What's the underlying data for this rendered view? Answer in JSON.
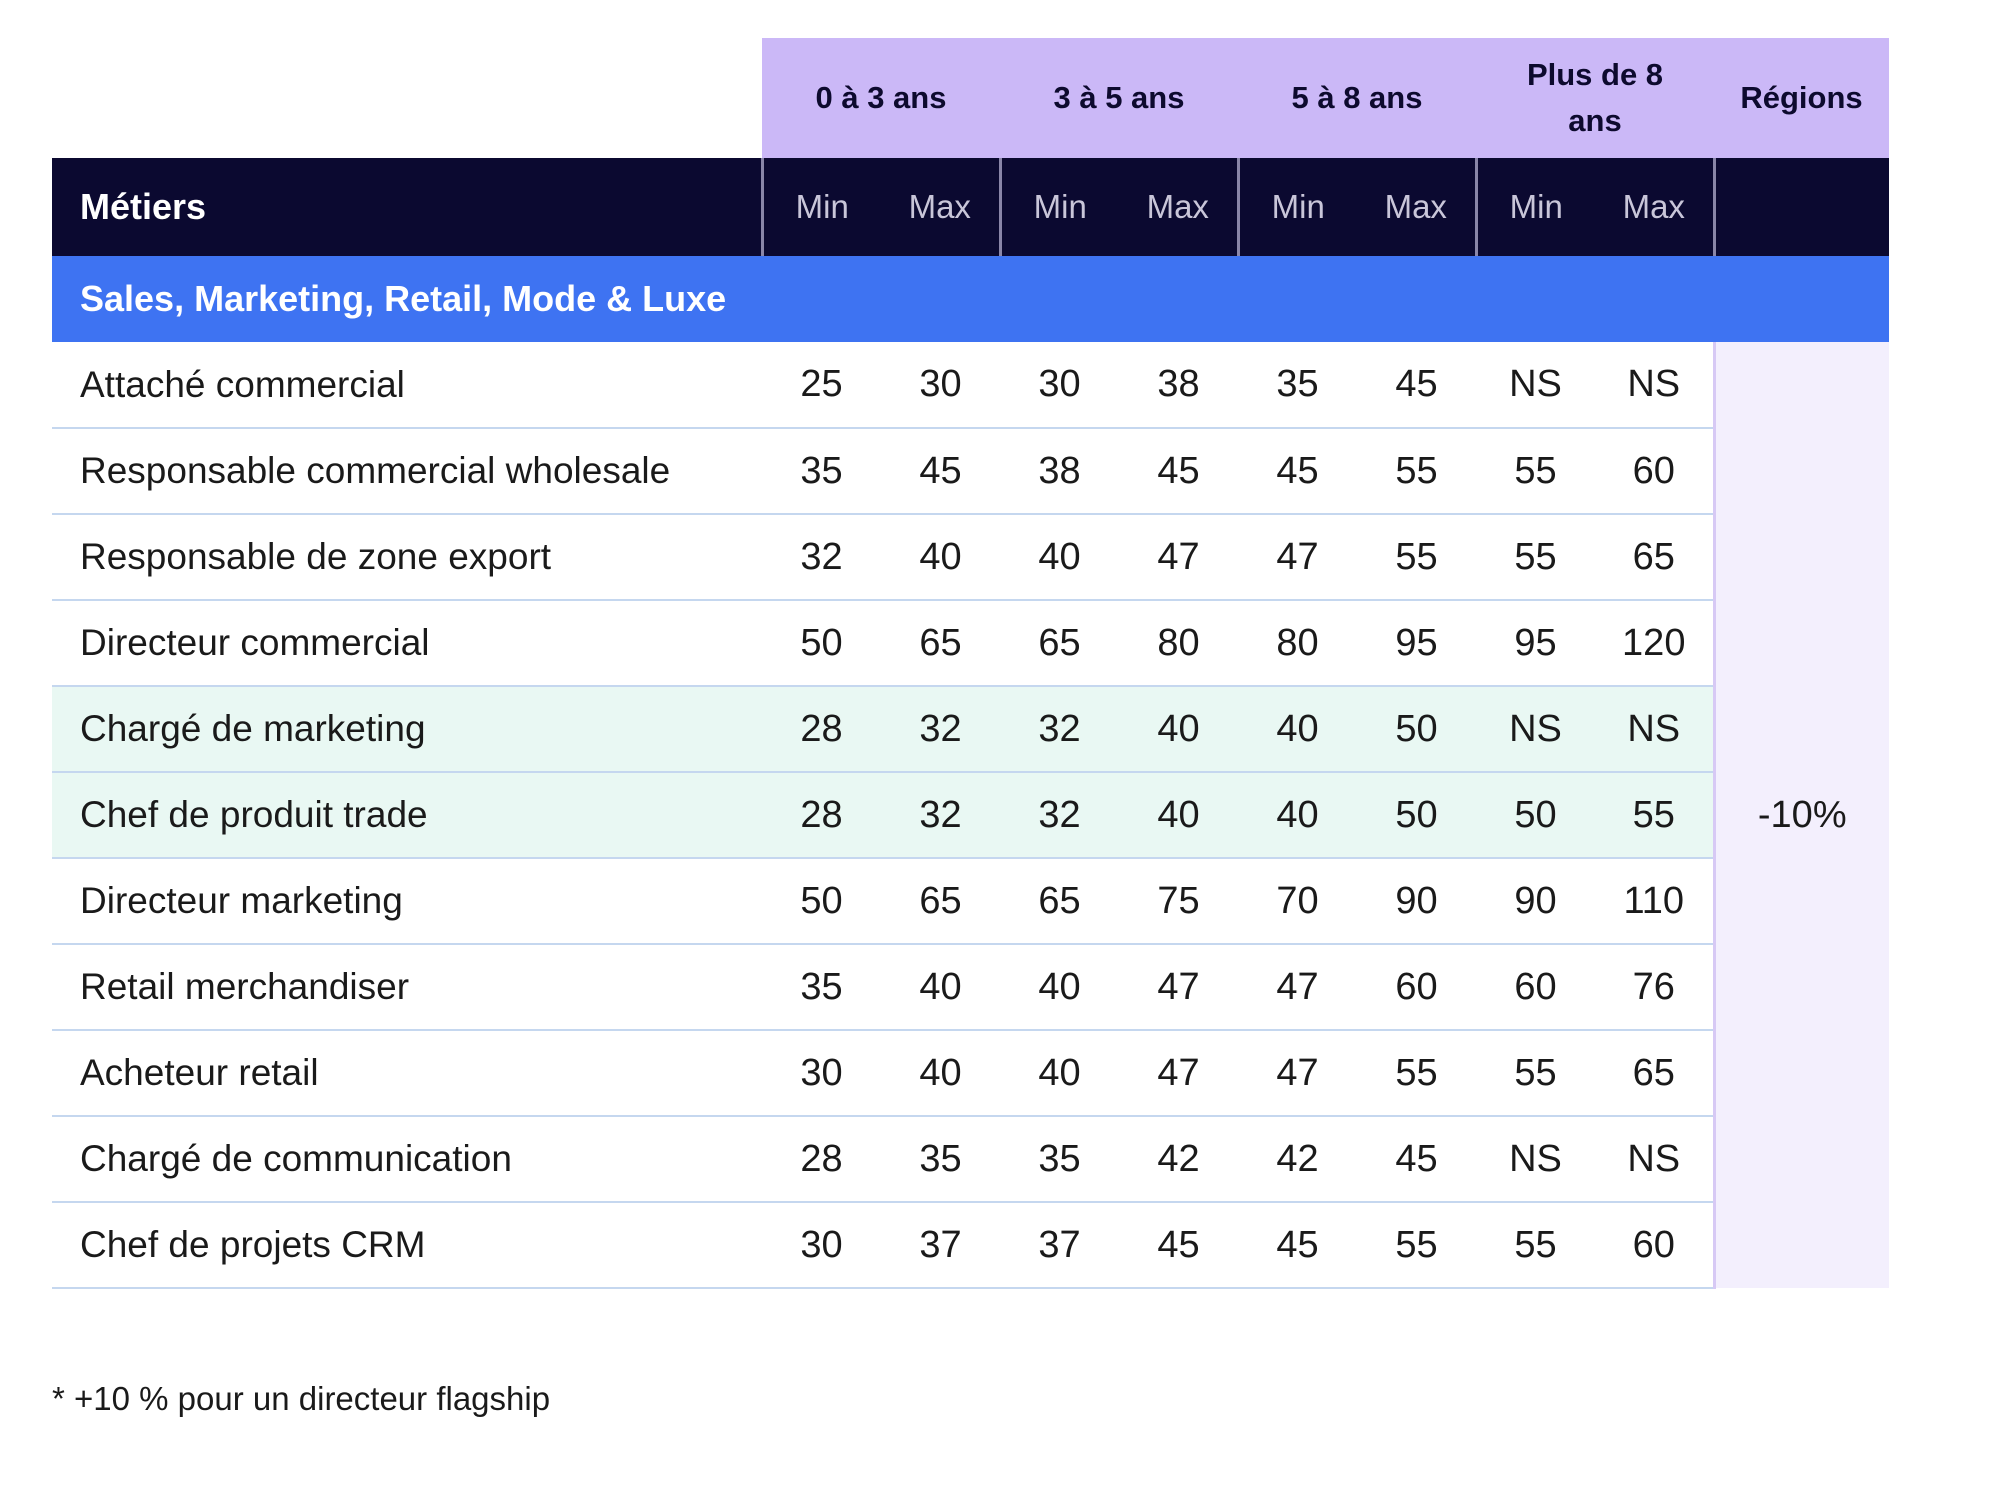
{
  "table": {
    "experience_headers": [
      "0 à 3 ans",
      "3 à 5 ans",
      "5 à 8 ans",
      "Plus de 8 ans",
      "Régions"
    ],
    "column_headers": {
      "job": "Métiers",
      "subcols": [
        "Min",
        "Max",
        "Min",
        "Max",
        "Min",
        "Max",
        "Min",
        "Max"
      ]
    },
    "section_title": "Sales, Marketing, Retail, Mode & Luxe",
    "region_value": "-10%",
    "rows": [
      {
        "job": "Attaché commercial",
        "values": [
          "25",
          "30",
          "30",
          "38",
          "35",
          "45",
          "NS",
          "NS"
        ],
        "highlight": false
      },
      {
        "job": "Responsable commercial wholesale",
        "values": [
          "35",
          "45",
          "38",
          "45",
          "45",
          "55",
          "55",
          "60"
        ],
        "highlight": false
      },
      {
        "job": "Responsable de zone export",
        "values": [
          "32",
          "40",
          "40",
          "47",
          "47",
          "55",
          "55",
          "65"
        ],
        "highlight": false
      },
      {
        "job": "Directeur commercial",
        "values": [
          "50",
          "65",
          "65",
          "80",
          "80",
          "95",
          "95",
          "120"
        ],
        "highlight": false
      },
      {
        "job": "Chargé de marketing",
        "values": [
          "28",
          "32",
          "32",
          "40",
          "40",
          "50",
          "NS",
          "NS"
        ],
        "highlight": true
      },
      {
        "job": "Chef de produit trade",
        "values": [
          "28",
          "32",
          "32",
          "40",
          "40",
          "50",
          "50",
          "55"
        ],
        "highlight": true
      },
      {
        "job": "Directeur marketing",
        "values": [
          "50",
          "65",
          "65",
          "75",
          "70",
          "90",
          "90",
          "110"
        ],
        "highlight": false
      },
      {
        "job": "Retail merchandiser",
        "values": [
          "35",
          "40",
          "40",
          "47",
          "47",
          "60",
          "60",
          "76"
        ],
        "highlight": false
      },
      {
        "job": "Acheteur retail",
        "values": [
          "30",
          "40",
          "40",
          "47",
          "47",
          "55",
          "55",
          "65"
        ],
        "highlight": false
      },
      {
        "job": "Chargé de communication",
        "values": [
          "28",
          "35",
          "35",
          "42",
          "42",
          "45",
          "NS",
          "NS"
        ],
        "highlight": false
      },
      {
        "job": "Chef de projets CRM",
        "values": [
          "30",
          "37",
          "37",
          "45",
          "45",
          "55",
          "55",
          "60"
        ],
        "highlight": false
      }
    ]
  },
  "footnote": "* +10 % pour un directeur flagship",
  "colors": {
    "header_purple": "#cbb8f7",
    "header_dark": "#0b0930",
    "section_blue": "#3e73f2",
    "highlight_mint": "#e9f8f3",
    "region_bg": "#f3effd"
  }
}
